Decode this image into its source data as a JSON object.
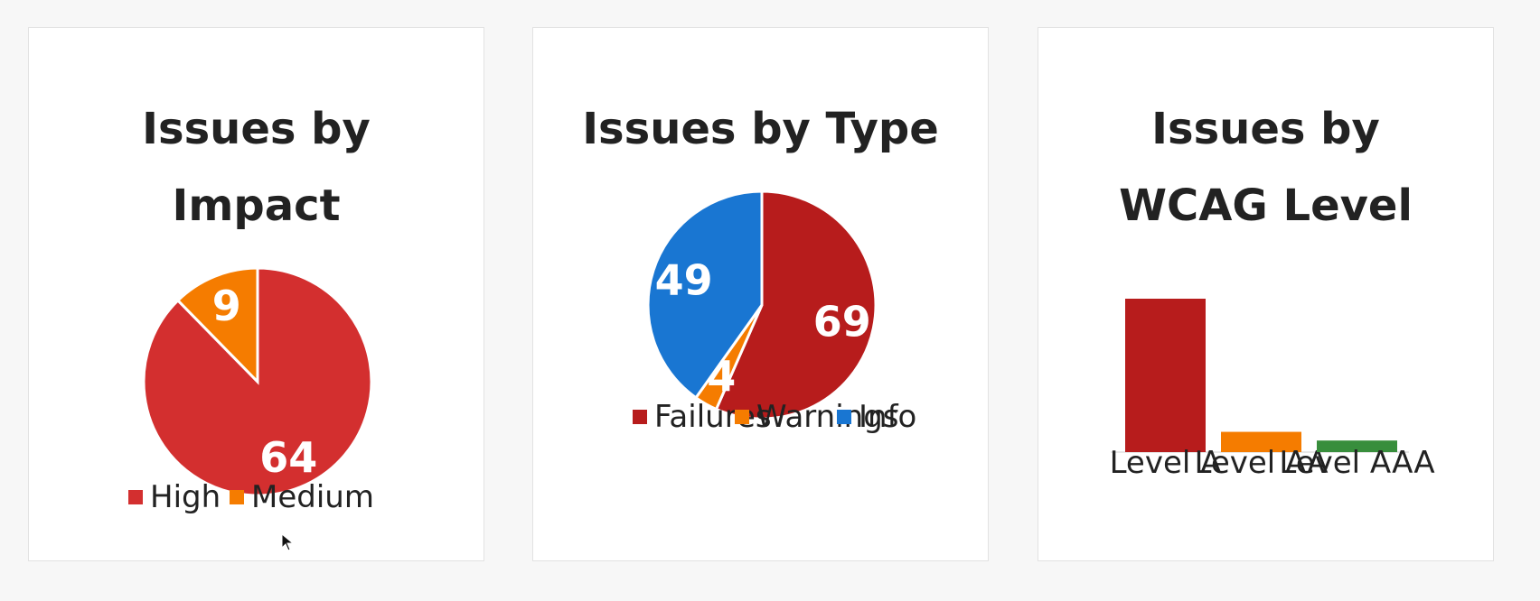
{
  "cards": [
    {
      "title": "Issues by Impact",
      "chart_data": {
        "type": "pie",
        "title": "Issues by Impact",
        "labels": [
          "High",
          "Medium"
        ],
        "values": [
          64,
          9
        ],
        "colors": [
          "#d32f2f",
          "#f57c00"
        ],
        "legend": "bottom"
      }
    },
    {
      "title": "Issues by Type",
      "chart_data": {
        "type": "pie",
        "title": "Issues by Type",
        "labels": [
          "Failures",
          "Warnings",
          "Info"
        ],
        "values": [
          69,
          4,
          49
        ],
        "colors": [
          "#b71c1c",
          "#f57c00",
          "#1976d2"
        ],
        "legend": "bottom"
      }
    },
    {
      "title": "Issues by WCAG Level",
      "chart_data": {
        "type": "bar",
        "title": "Issues by WCAG Level",
        "categories": [
          "Level A",
          "Level AA",
          "Level AAA"
        ],
        "values": [
          53,
          7,
          4
        ],
        "colors": [
          "#b71c1c",
          "#f57c00",
          "#388e3c"
        ],
        "ylim": [
          0,
          53
        ],
        "legend": "none"
      }
    }
  ]
}
